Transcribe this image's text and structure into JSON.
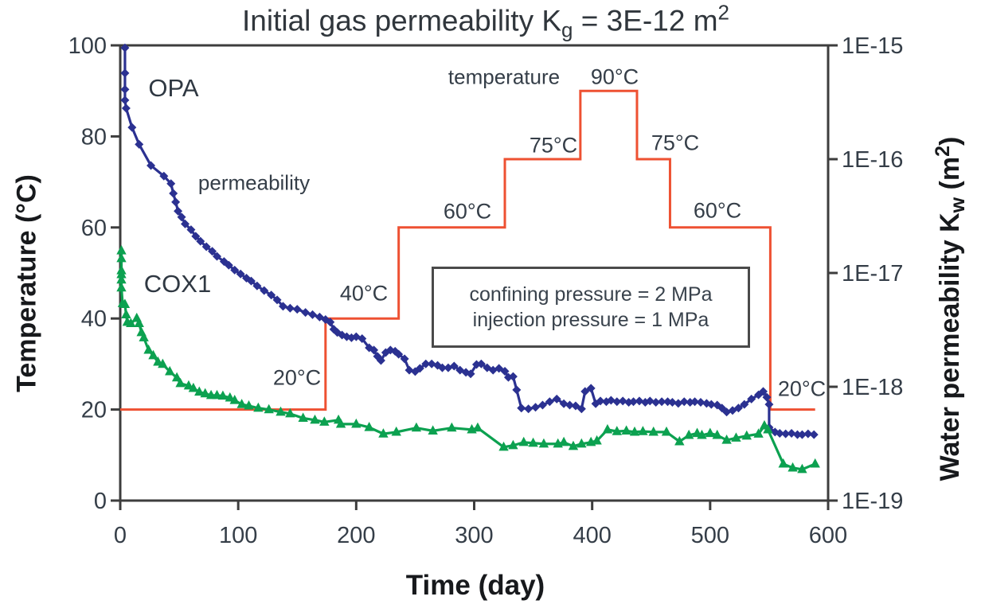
{
  "figure": {
    "title": {
      "prefix": "Initial gas permeability K",
      "sub": "g",
      "mid": " = 3E-12 m",
      "sup": "2"
    }
  },
  "labels": {
    "opa": "OPA",
    "cox1": "COX1",
    "permeability": "permeability",
    "temperature": "temperature",
    "box_line1": "confining pressure = 2 MPa",
    "box_line2": "injection pressure = 1 MPa",
    "right_axis_parts": {
      "pre": "Water permeability  K",
      "sub": "w",
      "post": "  (m",
      "sup": "2",
      "close": ")"
    }
  },
  "chart_data": {
    "type": "line",
    "title": "Initial gas permeability Kg = 3E-12 m2",
    "xlabel": "Time (day)",
    "x_axis": {
      "min": 0,
      "max": 600,
      "ticks": [
        0,
        100,
        200,
        300,
        400,
        500,
        600
      ]
    },
    "y_axis_left": {
      "label": "Temperature (°C)",
      "min": 0,
      "max": 100,
      "ticks": [
        0,
        20,
        40,
        60,
        80,
        100
      ]
    },
    "y_axis_right": {
      "label": "Water permeability Kw (m2)",
      "scale": "log",
      "min": 1e-19,
      "max": 1e-15,
      "tick_labels": [
        "1E-15",
        "1E-16",
        "1E-17",
        "1E-18",
        "1E-19"
      ],
      "tick_values": [
        1e-15,
        1e-16,
        1e-17,
        1e-18,
        1e-19
      ]
    },
    "grid": false,
    "legend": "none",
    "step_labels": [
      {
        "text": "20°C"
      },
      {
        "text": "40°C"
      },
      {
        "text": "60°C"
      },
      {
        "text": "75°C"
      },
      {
        "text": "90°C"
      },
      {
        "text": "75°C"
      },
      {
        "text": "60°C"
      },
      {
        "text": "20°C"
      }
    ],
    "series": [
      {
        "name": "temperature program",
        "axis": "left",
        "type": "step",
        "color": "#ee5132",
        "marker": "none",
        "points": [
          [
            0,
            20
          ],
          [
            174,
            20
          ],
          [
            174,
            40
          ],
          [
            236,
            40
          ],
          [
            236,
            60
          ],
          [
            326,
            60
          ],
          [
            326,
            75
          ],
          [
            390,
            75
          ],
          [
            390,
            90
          ],
          [
            438,
            90
          ],
          [
            438,
            75
          ],
          [
            466,
            75
          ],
          [
            466,
            60
          ],
          [
            551,
            60
          ],
          [
            551,
            20
          ],
          [
            589,
            20
          ]
        ]
      },
      {
        "name": "OPA",
        "axis": "right",
        "type": "line",
        "color": "#2b3191",
        "marker": "diamond",
        "points": [
          [
            4,
            9.5e-16
          ],
          [
            4,
            5.7e-16
          ],
          [
            4,
            4.1e-16
          ],
          [
            4,
            3.3e-16
          ],
          [
            5,
            2.8e-16
          ],
          [
            10,
            1.9e-16
          ],
          [
            16,
            1.35e-16
          ],
          [
            26,
            8.8e-17
          ],
          [
            37,
            7.1e-17
          ],
          [
            43,
            6.1e-17
          ],
          [
            45,
            5e-17
          ],
          [
            47,
            4.2e-17
          ],
          [
            49,
            3.5e-17
          ],
          [
            52,
            3.1e-17
          ],
          [
            55,
            2.7e-17
          ],
          [
            60,
            2.4e-17
          ],
          [
            64,
            2.1e-17
          ],
          [
            68,
            1.9e-17
          ],
          [
            73,
            1.7e-17
          ],
          [
            78,
            1.55e-17
          ],
          [
            82,
            1.4e-17
          ],
          [
            88,
            1.26e-17
          ],
          [
            92,
            1.17e-17
          ],
          [
            97,
            1.06e-17
          ],
          [
            102,
            9.8e-18
          ],
          [
            107,
            9e-18
          ],
          [
            111,
            8.5e-18
          ],
          [
            116,
            7.7e-18
          ],
          [
            122,
            7e-18
          ],
          [
            128,
            6.4e-18
          ],
          [
            133,
            5.8e-18
          ],
          [
            138,
            5.1e-18
          ],
          [
            144,
            4.9e-18
          ],
          [
            150,
            4.8e-18
          ],
          [
            157,
            4.5e-18
          ],
          [
            163,
            4.3e-18
          ],
          [
            169,
            4.1e-18
          ],
          [
            174,
            3.9e-18
          ],
          [
            178,
            3.7e-18
          ],
          [
            181,
            3.2e-18
          ],
          [
            184,
            3e-18
          ],
          [
            188,
            2.85e-18
          ],
          [
            192,
            2.75e-18
          ],
          [
            196,
            2.7e-18
          ],
          [
            200,
            2.75e-18
          ],
          [
            205,
            2.65e-18
          ],
          [
            211,
            2.2e-18
          ],
          [
            215,
            2.1e-18
          ],
          [
            218,
            1.85e-18
          ],
          [
            221,
            1.7e-18
          ],
          [
            225,
            2e-18
          ],
          [
            229,
            2.1e-18
          ],
          [
            233,
            2.05e-18
          ],
          [
            236,
            1.93e-18
          ],
          [
            241,
            1.76e-18
          ],
          [
            245,
            1.4e-18
          ],
          [
            250,
            1.36e-18
          ],
          [
            254,
            1.45e-18
          ],
          [
            259,
            1.59e-18
          ],
          [
            264,
            1.59e-18
          ],
          [
            269,
            1.54e-18
          ],
          [
            273,
            1.47e-18
          ],
          [
            278,
            1.47e-18
          ],
          [
            283,
            1.52e-18
          ],
          [
            288,
            1.4e-18
          ],
          [
            293,
            1.34e-18
          ],
          [
            297,
            1.3e-18
          ],
          [
            302,
            1.57e-18
          ],
          [
            306,
            1.59e-18
          ],
          [
            311,
            1.47e-18
          ],
          [
            316,
            1.4e-18
          ],
          [
            321,
            1.45e-18
          ],
          [
            326,
            1.37e-18
          ],
          [
            329,
            1.21e-18
          ],
          [
            333,
            1.23e-18
          ],
          [
            336,
            9.4e-19
          ],
          [
            340,
            6.5e-19
          ],
          [
            346,
            6.4e-19
          ],
          [
            352,
            6.6e-19
          ],
          [
            358,
            6.9e-19
          ],
          [
            364,
            7.4e-19
          ],
          [
            370,
            7.8e-19
          ],
          [
            376,
            7.1e-19
          ],
          [
            381,
            6.9e-19
          ],
          [
            386,
            6.8e-19
          ],
          [
            391,
            6.4e-19
          ],
          [
            394,
            9.1e-19
          ],
          [
            399,
            9.7e-19
          ],
          [
            403,
            7.1e-19
          ],
          [
            407,
            7.5e-19
          ],
          [
            412,
            7.4e-19
          ],
          [
            416,
            7.6e-19
          ],
          [
            421,
            7.4e-19
          ],
          [
            426,
            7.5e-19
          ],
          [
            431,
            7.3e-19
          ],
          [
            435,
            7.4e-19
          ],
          [
            440,
            7.5e-19
          ],
          [
            445,
            7.3e-19
          ],
          [
            449,
            7.5e-19
          ],
          [
            454,
            7.3e-19
          ],
          [
            459,
            7.4e-19
          ],
          [
            464,
            7.4e-19
          ],
          [
            468,
            7.3e-19
          ],
          [
            473,
            7.15e-19
          ],
          [
            478,
            7.4e-19
          ],
          [
            483,
            7.3e-19
          ],
          [
            487,
            7.4e-19
          ],
          [
            492,
            7.3e-19
          ],
          [
            497,
            7.15e-19
          ],
          [
            501,
            7e-19
          ],
          [
            506,
            6.9e-19
          ],
          [
            510,
            6.5e-19
          ],
          [
            514,
            6e-19
          ],
          [
            519,
            6.2e-19
          ],
          [
            524,
            6.5e-19
          ],
          [
            529,
            7e-19
          ],
          [
            535,
            7.8e-19
          ],
          [
            541,
            8.5e-19
          ],
          [
            545,
            9.1e-19
          ],
          [
            548,
            8.1e-19
          ],
          [
            550,
            7e-19
          ],
          [
            550,
            4.4e-19
          ],
          [
            555,
            4e-19
          ],
          [
            559,
            3.9e-19
          ],
          [
            564,
            3.86e-19
          ],
          [
            569,
            3.9e-19
          ],
          [
            574,
            3.8e-19
          ],
          [
            578,
            3.8e-19
          ],
          [
            583,
            3.86e-19
          ],
          [
            588,
            3.8e-19
          ]
        ]
      },
      {
        "name": "COX1",
        "axis": "right",
        "type": "line",
        "color": "#0ca150",
        "marker": "triangle",
        "points": [
          [
            1,
            1.57e-17
          ],
          [
            1,
            1.34e-17
          ],
          [
            1,
            1.05e-17
          ],
          [
            1,
            9.7e-18
          ],
          [
            1,
            8.7e-18
          ],
          [
            1,
            7.4e-18
          ],
          [
            2,
            5.4e-18
          ],
          [
            4,
            5.3e-18
          ],
          [
            5,
            4.3e-18
          ],
          [
            6,
            3.7e-18
          ],
          [
            9,
            3.6e-18
          ],
          [
            14,
            4e-18
          ],
          [
            16,
            3.6e-18
          ],
          [
            18,
            3e-18
          ],
          [
            20,
            2.7e-18
          ],
          [
            24,
            2.1e-18
          ],
          [
            28,
            1.88e-18
          ],
          [
            32,
            1.65e-18
          ],
          [
            36,
            1.58e-18
          ],
          [
            42,
            1.36e-18
          ],
          [
            48,
            1.2e-18
          ],
          [
            51,
            1.07e-18
          ],
          [
            58,
            1.02e-18
          ],
          [
            62,
            9.7e-19
          ],
          [
            67,
            9e-19
          ],
          [
            72,
            8.7e-19
          ],
          [
            77,
            8.4e-19
          ],
          [
            82,
            8.4e-19
          ],
          [
            87,
            8.3e-19
          ],
          [
            93,
            8e-19
          ],
          [
            97,
            7.6e-19
          ],
          [
            103,
            7e-19
          ],
          [
            109,
            6.8e-19
          ],
          [
            117,
            6.5e-19
          ],
          [
            126,
            6.3e-19
          ],
          [
            136,
            6e-19
          ],
          [
            144,
            5.8e-19
          ],
          [
            155,
            5.3e-19
          ],
          [
            165,
            5.1e-19
          ],
          [
            173,
            4.9e-19
          ],
          [
            185,
            5.1e-19
          ],
          [
            187,
            4.7e-19
          ],
          [
            200,
            4.7e-19
          ],
          [
            211,
            4.4e-19
          ],
          [
            223,
            3.86e-19
          ],
          [
            234,
            4e-19
          ],
          [
            251,
            4.35e-19
          ],
          [
            265,
            4.1e-19
          ],
          [
            281,
            4.35e-19
          ],
          [
            298,
            4.2e-19
          ],
          [
            303,
            4.35e-19
          ],
          [
            325,
            2.95e-19
          ],
          [
            333,
            3.05e-19
          ],
          [
            342,
            3.25e-19
          ],
          [
            350,
            3.2e-19
          ],
          [
            359,
            3.15e-19
          ],
          [
            371,
            3.15e-19
          ],
          [
            376,
            3.25e-19
          ],
          [
            384,
            3e-19
          ],
          [
            391,
            3.15e-19
          ],
          [
            399,
            3.25e-19
          ],
          [
            404,
            3.35e-19
          ],
          [
            413,
            4.2e-19
          ],
          [
            421,
            4.05e-19
          ],
          [
            429,
            4.1e-19
          ],
          [
            436,
            4e-19
          ],
          [
            443,
            4.05e-19
          ],
          [
            452,
            4e-19
          ],
          [
            463,
            4e-19
          ],
          [
            474,
            3.3e-19
          ],
          [
            482,
            3.75e-19
          ],
          [
            489,
            3.9e-19
          ],
          [
            493,
            3.75e-19
          ],
          [
            500,
            3.9e-19
          ],
          [
            506,
            3.75e-19
          ],
          [
            514,
            3.4e-19
          ],
          [
            522,
            3.55e-19
          ],
          [
            531,
            3.7e-19
          ],
          [
            541,
            3.85e-19
          ],
          [
            546,
            4.55e-19
          ],
          [
            549,
            4.2e-19
          ],
          [
            562,
            2.1e-19
          ],
          [
            570,
            1.94e-19
          ],
          [
            578,
            1.88e-19
          ],
          [
            589,
            2.1e-19
          ]
        ]
      }
    ],
    "annotations": [
      "temperature program steps labeled 20°C, 40°C, 60°C, 75°C, 90°C, 75°C, 60°C, 20°C",
      "confining pressure = 2 MPa",
      "injection pressure = 1 MPa"
    ],
    "colors": {
      "temperature_line": "#ee5132",
      "opa": "#2b3191",
      "cox1": "#0ca150",
      "axis": "#3d3d3d"
    }
  }
}
